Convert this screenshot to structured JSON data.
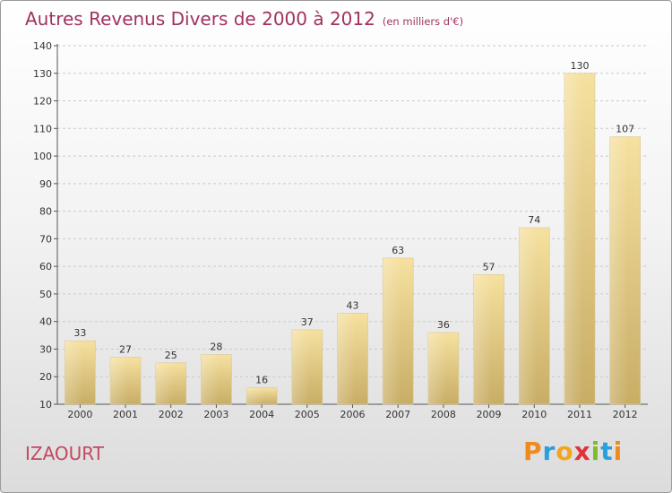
{
  "title": "Autres Revenus Divers de 2000 à 2012",
  "subtitle": "(en milliers d'€)",
  "place": "IZAOURT",
  "logo": {
    "letters": [
      "P",
      "r",
      "o",
      "x",
      "i",
      "t",
      "i"
    ],
    "colors": [
      "#f08a1c",
      "#29a0dc",
      "#f2a51f",
      "#e0333a",
      "#7dbb2a",
      "#29a0dc",
      "#f08a1c"
    ]
  },
  "chart_data": {
    "type": "bar",
    "title": "Autres Revenus Divers de 2000 à 2012",
    "subtitle": "(en milliers d'€)",
    "categories": [
      "2000",
      "2001",
      "2002",
      "2003",
      "2004",
      "2005",
      "2006",
      "2007",
      "2008",
      "2009",
      "2010",
      "2011",
      "2012"
    ],
    "values": [
      33,
      27,
      25,
      28,
      16,
      37,
      43,
      63,
      36,
      57,
      74,
      130,
      107
    ],
    "ylim": [
      10,
      140
    ],
    "yticks": [
      10,
      20,
      30,
      40,
      50,
      60,
      70,
      80,
      90,
      100,
      110,
      120,
      130,
      140
    ],
    "grid": true,
    "bar_color": "#e6cf8c"
  }
}
